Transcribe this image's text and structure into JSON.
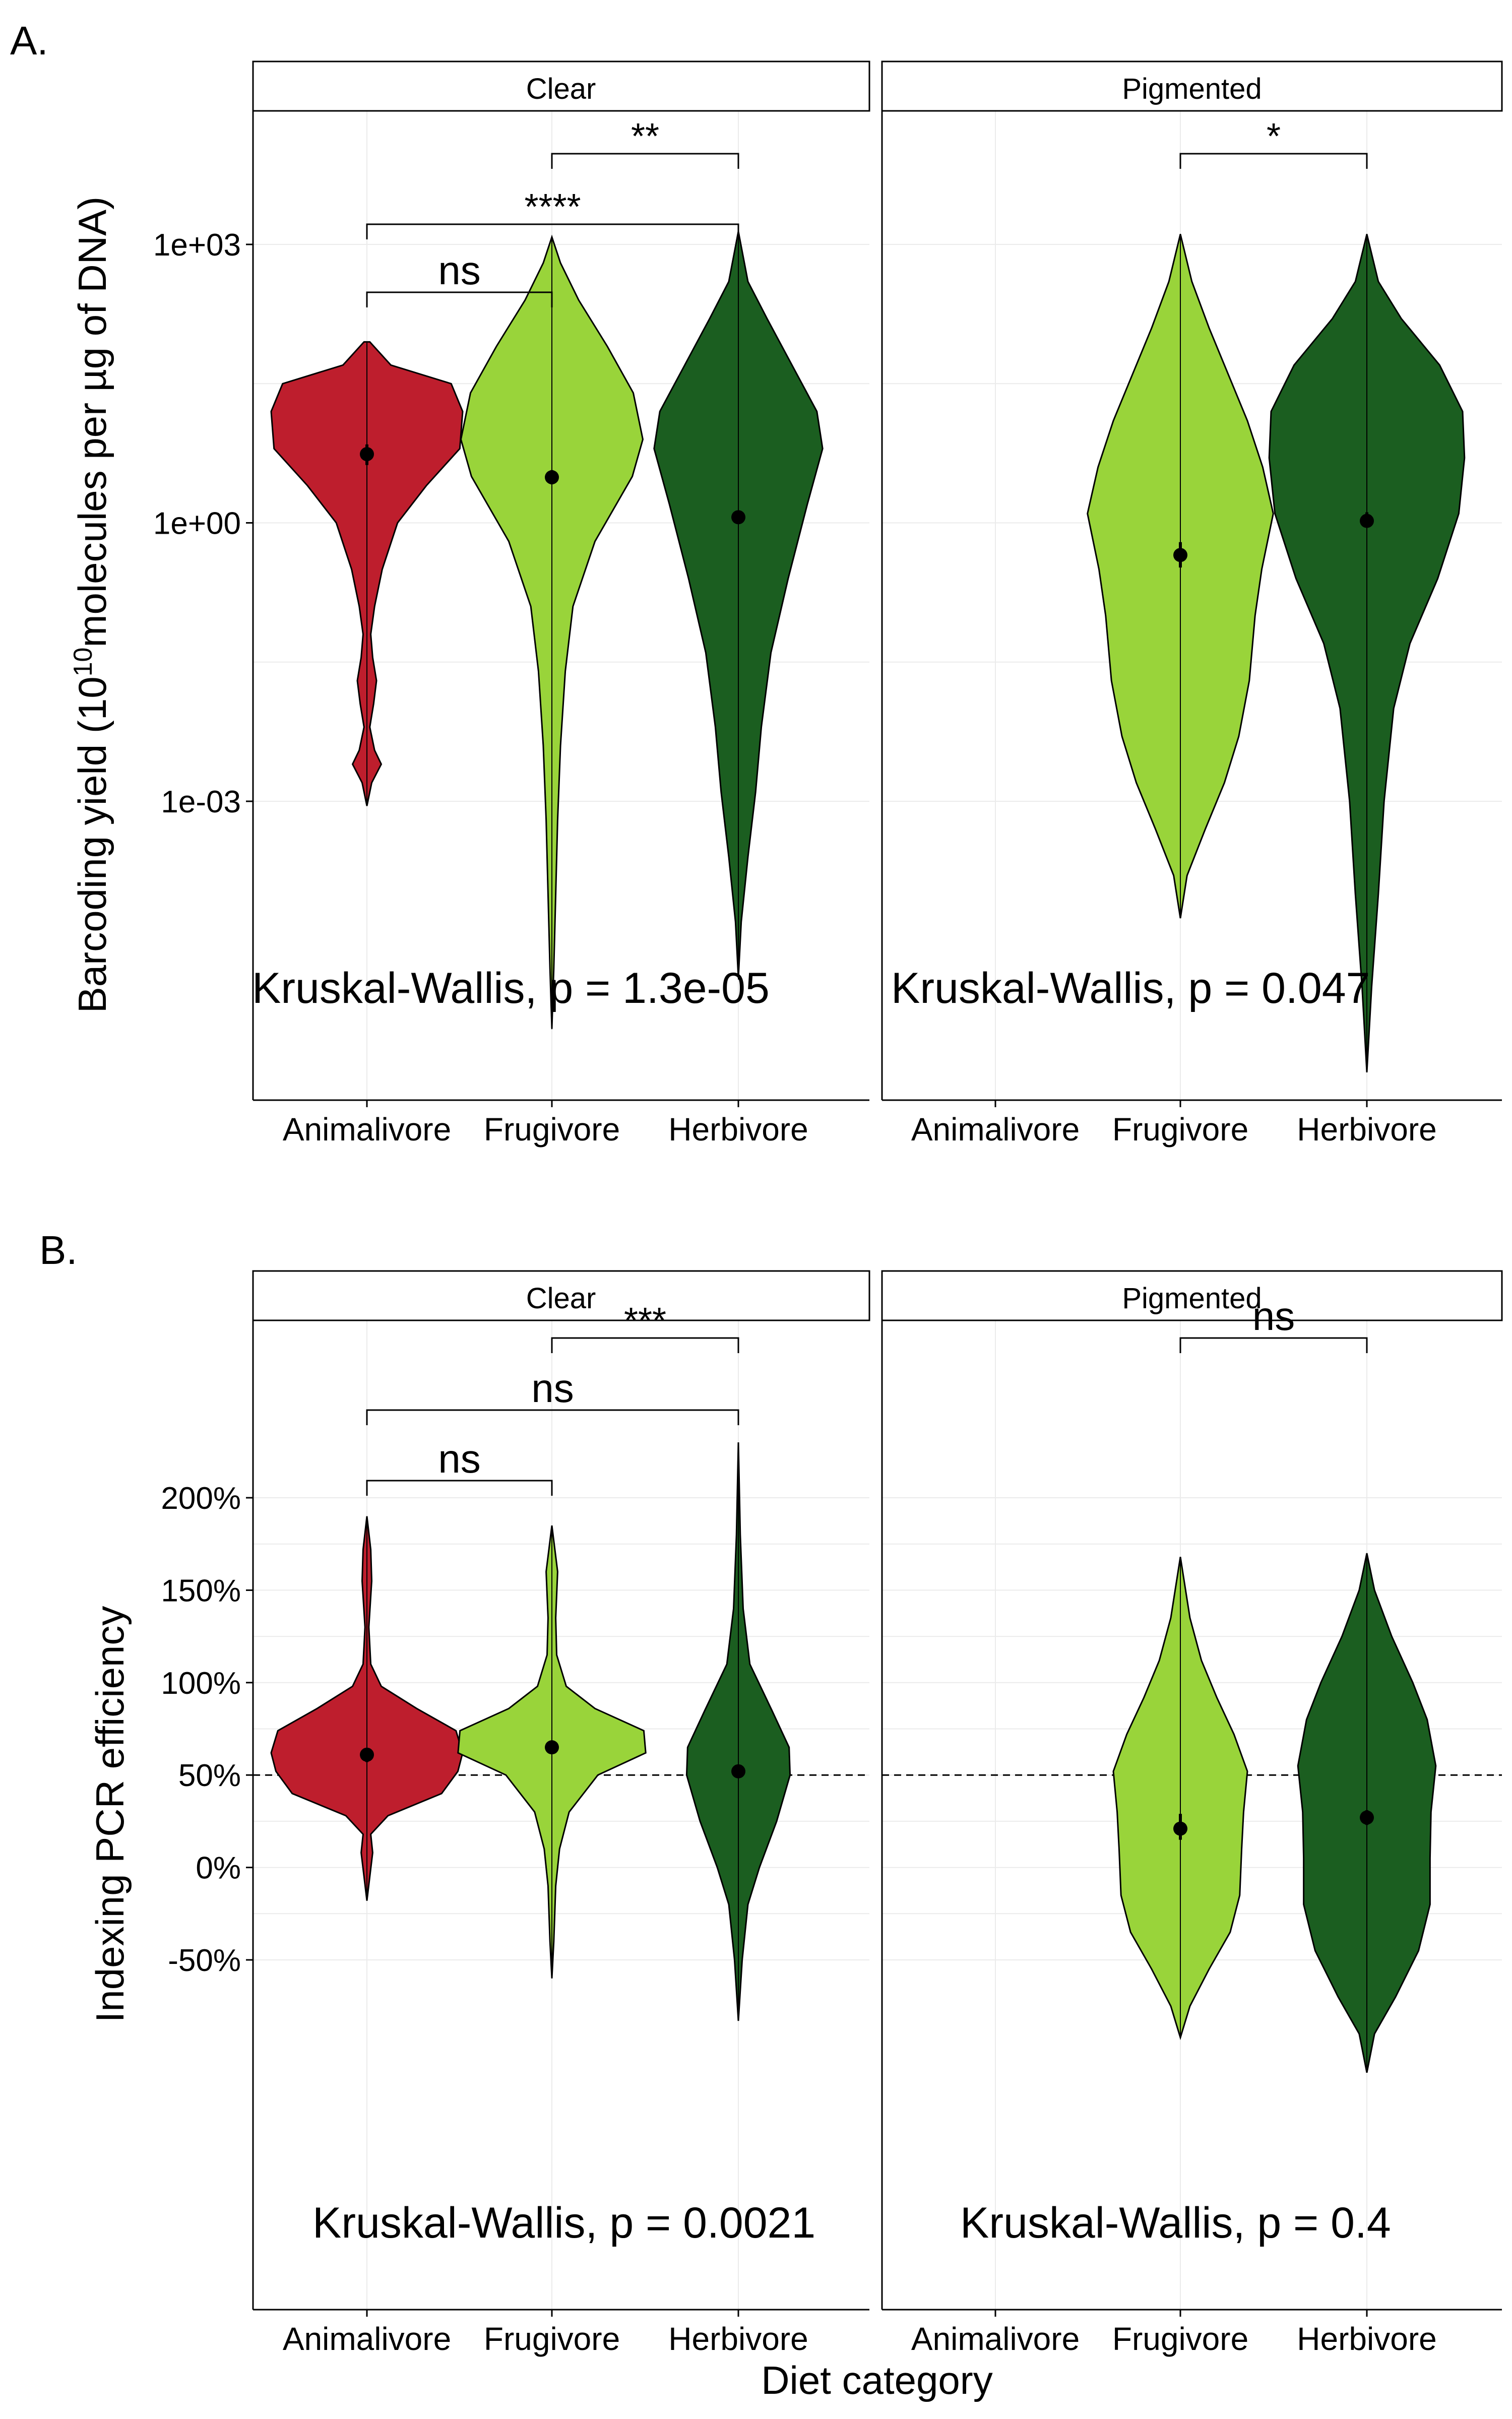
{
  "colors": {
    "Animalivore": "#BE1E2D",
    "Frugivore": "#99D43A",
    "Herbivore": "#1B5E20"
  },
  "xlabel_shared": "Diet category",
  "chart_data": [
    {
      "panel_label": "A.",
      "type": "violin",
      "ylabel_prefix": "Barcoding yield (10",
      "ylabel_sup": "10",
      "ylabel_suffix": "molecules per µg of DNA)",
      "yscale": "log10",
      "ylim": [
        2e-06,
        20000
      ],
      "yticks": [
        {
          "v": 0.001,
          "label": "1e-03"
        },
        {
          "v": 1,
          "label": "1e+00"
        },
        {
          "v": 1000,
          "label": "1e+03"
        }
      ],
      "categories": [
        "Animalivore",
        "Frugivore",
        "Herbivore"
      ],
      "facets": [
        {
          "name": "Clear",
          "violins": [
            {
              "category": "Animalivore",
              "mean": 5.5,
              "ci": [
                4.2,
                7.0
              ],
              "lo": 0.0009,
              "hi": 90,
              "width": [
                [
                  -3.05,
                  0.0
                ],
                [
                  -2.8,
                  0.05
                ],
                [
                  -2.6,
                  0.15
                ],
                [
                  -2.45,
                  0.08
                ],
                [
                  -2.2,
                  0.03
                ],
                [
                  -1.95,
                  0.07
                ],
                [
                  -1.7,
                  0.1
                ],
                [
                  -1.45,
                  0.06
                ],
                [
                  -1.2,
                  0.04
                ],
                [
                  -0.9,
                  0.08
                ],
                [
                  -0.5,
                  0.16
                ],
                [
                  0.0,
                  0.32
                ],
                [
                  0.4,
                  0.62
                ],
                [
                  0.8,
                  0.97
                ],
                [
                  1.2,
                  1.0
                ],
                [
                  1.5,
                  0.88
                ],
                [
                  1.7,
                  0.25
                ],
                [
                  1.95,
                  0.03
                ]
              ]
            },
            {
              "category": "Frugivore",
              "mean": 3.1,
              "ci": [
                2.6,
                3.7
              ],
              "lo": 3.5e-06,
              "hi": 1200,
              "width": [
                [
                  -5.45,
                  0.0
                ],
                [
                  -4.8,
                  0.02
                ],
                [
                  -4.0,
                  0.04
                ],
                [
                  -3.2,
                  0.06
                ],
                [
                  -2.4,
                  0.09
                ],
                [
                  -1.6,
                  0.14
                ],
                [
                  -0.9,
                  0.22
                ],
                [
                  -0.2,
                  0.45
                ],
                [
                  0.5,
                  0.84
                ],
                [
                  0.9,
                  0.95
                ],
                [
                  1.4,
                  0.85
                ],
                [
                  1.9,
                  0.58
                ],
                [
                  2.4,
                  0.28
                ],
                [
                  2.8,
                  0.09
                ],
                [
                  3.08,
                  0.0
                ]
              ]
            },
            {
              "category": "Herbivore",
              "mean": 1.15,
              "ci": [
                1.02,
                1.3
              ],
              "lo": 1.2e-05,
              "hi": 1400,
              "width": [
                [
                  -4.9,
                  0.0
                ],
                [
                  -4.3,
                  0.03
                ],
                [
                  -3.6,
                  0.1
                ],
                [
                  -2.9,
                  0.18
                ],
                [
                  -2.2,
                  0.24
                ],
                [
                  -1.4,
                  0.34
                ],
                [
                  -0.6,
                  0.52
                ],
                [
                  0.2,
                  0.72
                ],
                [
                  0.8,
                  0.88
                ],
                [
                  1.2,
                  0.82
                ],
                [
                  1.7,
                  0.56
                ],
                [
                  2.2,
                  0.3
                ],
                [
                  2.6,
                  0.1
                ],
                [
                  3.14,
                  0.0
                ]
              ]
            }
          ],
          "brackets": [
            {
              "from": "Animalivore",
              "to": "Frugivore",
              "label": "ns"
            },
            {
              "from": "Animalivore",
              "to": "Herbivore",
              "label": "****"
            },
            {
              "from": "Frugivore",
              "to": "Herbivore",
              "label": "**"
            }
          ],
          "test_label": "Kruskal-Wallis, p = 1.3e-05"
        },
        {
          "name": "Pigmented",
          "violins": [
            {
              "category": "Frugivore",
              "mean": 0.45,
              "ci": [
                0.33,
                0.62
              ],
              "lo": 5.5e-05,
              "hi": 1300,
              "width": [
                [
                  -4.26,
                  0.0
                ],
                [
                  -3.8,
                  0.07
                ],
                [
                  -3.3,
                  0.26
                ],
                [
                  -2.8,
                  0.46
                ],
                [
                  -2.3,
                  0.61
                ],
                [
                  -1.7,
                  0.72
                ],
                [
                  -1.0,
                  0.78
                ],
                [
                  -0.5,
                  0.85
                ],
                [
                  0.1,
                  0.97
                ],
                [
                  0.6,
                  0.86
                ],
                [
                  1.1,
                  0.7
                ],
                [
                  1.6,
                  0.5
                ],
                [
                  2.1,
                  0.3
                ],
                [
                  2.6,
                  0.12
                ],
                [
                  3.11,
                  0.0
                ]
              ]
            },
            {
              "category": "Herbivore",
              "mean": 1.05,
              "ci": [
                0.9,
                1.3
              ],
              "lo": 1.2e-06,
              "hi": 1300,
              "width": [
                [
                  -5.92,
                  0.0
                ],
                [
                  -5.0,
                  0.05
                ],
                [
                  -4.0,
                  0.12
                ],
                [
                  -3.0,
                  0.18
                ],
                [
                  -2.0,
                  0.28
                ],
                [
                  -1.3,
                  0.45
                ],
                [
                  -0.6,
                  0.74
                ],
                [
                  0.1,
                  0.96
                ],
                [
                  0.7,
                  1.02
                ],
                [
                  1.2,
                  1.0
                ],
                [
                  1.7,
                  0.76
                ],
                [
                  2.2,
                  0.36
                ],
                [
                  2.6,
                  0.12
                ],
                [
                  3.11,
                  0.0
                ]
              ]
            }
          ],
          "brackets": [
            {
              "from": "Frugivore",
              "to": "Herbivore",
              "label": "*"
            }
          ],
          "test_label": "Kruskal-Wallis, p = 0.047"
        }
      ]
    },
    {
      "panel_label": "B.",
      "type": "violin",
      "ylabel": "Indexing PCR efficiency",
      "yscale": "linear",
      "ylim": [
        -140,
        290
      ],
      "yticks": [
        {
          "v": -50,
          "label": "-50%"
        },
        {
          "v": 0,
          "label": "0%"
        },
        {
          "v": 50,
          "label": "50%"
        },
        {
          "v": 100,
          "label": "100%"
        },
        {
          "v": 150,
          "label": "150%"
        },
        {
          "v": 200,
          "label": "200%"
        }
      ],
      "hline": 50,
      "categories": [
        "Animalivore",
        "Frugivore",
        "Herbivore"
      ],
      "facets": [
        {
          "name": "Clear",
          "violins": [
            {
              "category": "Animalivore",
              "mean": 61,
              "ci": [
                57,
                64
              ],
              "lo": -18,
              "hi": 190,
              "width": [
                [
                  -18,
                  0.0
                ],
                [
                  -5,
                  0.03
                ],
                [
                  8,
                  0.06
                ],
                [
                  18,
                  0.04
                ],
                [
                  28,
                  0.22
                ],
                [
                  40,
                  0.78
                ],
                [
                  52,
                  0.95
                ],
                [
                  62,
                  1.0
                ],
                [
                  74,
                  0.93
                ],
                [
                  86,
                  0.52
                ],
                [
                  98,
                  0.15
                ],
                [
                  110,
                  0.04
                ],
                [
                  130,
                  0.02
                ],
                [
                  155,
                  0.05
                ],
                [
                  172,
                  0.04
                ],
                [
                  190,
                  0.0
                ]
              ]
            },
            {
              "category": "Frugivore",
              "mean": 65,
              "ci": [
                62,
                68
              ],
              "lo": -60,
              "hi": 185,
              "width": [
                [
                  -60,
                  0.0
                ],
                [
                  -40,
                  0.02
                ],
                [
                  -10,
                  0.04
                ],
                [
                  10,
                  0.08
                ],
                [
                  30,
                  0.18
                ],
                [
                  50,
                  0.48
                ],
                [
                  62,
                  0.98
                ],
                [
                  74,
                  0.96
                ],
                [
                  86,
                  0.45
                ],
                [
                  98,
                  0.15
                ],
                [
                  115,
                  0.05
                ],
                [
                  135,
                  0.04
                ],
                [
                  160,
                  0.06
                ],
                [
                  185,
                  0.0
                ]
              ]
            },
            {
              "category": "Herbivore",
              "mean": 52,
              "ci": [
                49,
                55
              ],
              "lo": -83,
              "hi": 230,
              "width": [
                [
                  -83,
                  0.0
                ],
                [
                  -50,
                  0.04
                ],
                [
                  -20,
                  0.1
                ],
                [
                  0,
                  0.22
                ],
                [
                  25,
                  0.4
                ],
                [
                  50,
                  0.54
                ],
                [
                  65,
                  0.53
                ],
                [
                  85,
                  0.35
                ],
                [
                  110,
                  0.12
                ],
                [
                  140,
                  0.05
                ],
                [
                  180,
                  0.02
                ],
                [
                  230,
                  0.0
                ]
              ]
            }
          ],
          "brackets": [
            {
              "from": "Animalivore",
              "to": "Frugivore",
              "label": "ns"
            },
            {
              "from": "Animalivore",
              "to": "Herbivore",
              "label": "ns"
            },
            {
              "from": "Frugivore",
              "to": "Herbivore",
              "label": "***"
            }
          ],
          "test_label": "Kruskal-Wallis, p = 0.0021"
        },
        {
          "name": "Pigmented",
          "violins": [
            {
              "category": "Frugivore",
              "mean": 21,
              "ci": [
                15,
                29
              ],
              "lo": -92,
              "hi": 168,
              "width": [
                [
                  -92,
                  0.0
                ],
                [
                  -75,
                  0.1
                ],
                [
                  -55,
                  0.3
                ],
                [
                  -35,
                  0.52
                ],
                [
                  -15,
                  0.62
                ],
                [
                  10,
                  0.64
                ],
                [
                  30,
                  0.66
                ],
                [
                  52,
                  0.7
                ],
                [
                  72,
                  0.56
                ],
                [
                  92,
                  0.38
                ],
                [
                  112,
                  0.22
                ],
                [
                  135,
                  0.1
                ],
                [
                  168,
                  0.0
                ]
              ]
            },
            {
              "category": "Herbivore",
              "mean": 27,
              "ci": [
                23,
                31
              ],
              "lo": -111,
              "hi": 170,
              "width": [
                [
                  -111,
                  0.0
                ],
                [
                  -90,
                  0.08
                ],
                [
                  -70,
                  0.3
                ],
                [
                  -45,
                  0.54
                ],
                [
                  -20,
                  0.66
                ],
                [
                  5,
                  0.66
                ],
                [
                  30,
                  0.67
                ],
                [
                  55,
                  0.72
                ],
                [
                  80,
                  0.63
                ],
                [
                  100,
                  0.48
                ],
                [
                  125,
                  0.26
                ],
                [
                  150,
                  0.08
                ],
                [
                  170,
                  0.0
                ]
              ]
            }
          ],
          "brackets": [
            {
              "from": "Frugivore",
              "to": "Herbivore",
              "label": "ns"
            }
          ],
          "test_label": "Kruskal-Wallis, p = 0.4"
        }
      ]
    }
  ]
}
